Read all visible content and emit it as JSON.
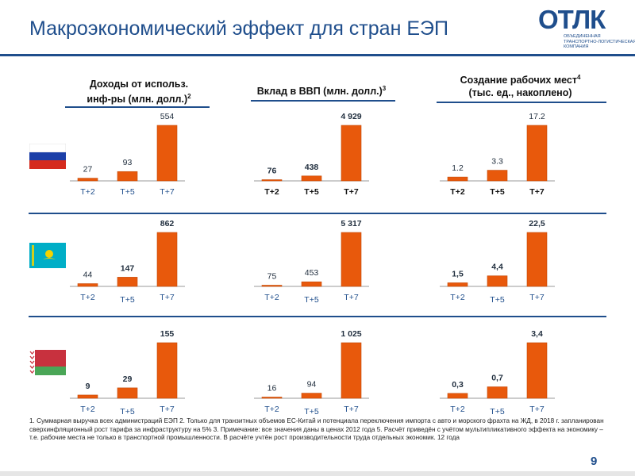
{
  "page": {
    "title": "Макроэкономический эффект для стран ЕЭП",
    "page_number": "9",
    "footnote": "1. Суммарная выручка всех администраций ЕЭП 2. Только для транзитных объемов ЕС-Китай и потенциала переключения импорта с авто и морского фрахта на ЖД, в 2018 г. запланирован сверхинфляционный рост тарифа за инфраструктуру на 5% 3. Примечание: все значения даны в ценах 2012 года 5. Расчёт приведён с учётом мультипликативного эффекта на экономику – т.е. рабочие места не только в транспортной промышленности. В расчёте учтён рост производительности труда отдельных экономик. 12 года"
  },
  "logo": {
    "word": "ОТЛК",
    "sub_lines": [
      "ОБЪЕДИНЕННАЯ",
      "ТРАНСПОРТНО-ЛОГИСТИЧЕСКАЯ",
      "КОМПАНИЯ"
    ],
    "color": "#1f4e8c"
  },
  "columns": [
    {
      "line1": "Доходы от использ.",
      "line2": "инф-ры (млн. долл.)",
      "sup": "2"
    },
    {
      "line1": "Вклад в ВВП (млн. долл.)",
      "line2": "",
      "sup": "3"
    },
    {
      "line1": "Создание рабочих мест",
      "line1_sup": "4",
      "line2": "(тыс. ед., накоплено)",
      "sup": ""
    }
  ],
  "flags": [
    {
      "country_icon": "russia-flag-icon"
    },
    {
      "country_icon": "kazakhstan-flag-icon"
    },
    {
      "country_icon": "belarus-flag-icon"
    }
  ],
  "colors": {
    "bar": "#e8590c",
    "bar_stroke": "#c44a08",
    "accent": "#1f4e8c",
    "baseline": "#9a9a9a"
  },
  "chart_data": [
    {
      "type": "bar",
      "row": "Россия",
      "metric": "Доходы от использ. инф-ры (млн. долл.)",
      "categories": [
        "T+2",
        "T+5",
        "T+7"
      ],
      "values": [
        27,
        93,
        554
      ],
      "labels": [
        "27",
        "93",
        "554"
      ]
    },
    {
      "type": "bar",
      "row": "Россия",
      "metric": "Вклад в ВВП (млн. долл.)",
      "categories": [
        "T+2",
        "T+5",
        "T+7"
      ],
      "values": [
        76,
        438,
        4929
      ],
      "labels": [
        "76",
        "438",
        "4 929"
      ]
    },
    {
      "type": "bar",
      "row": "Россия",
      "metric": "Создание рабочих мест (тыс. ед., накоплено)",
      "categories": [
        "T+2",
        "T+5",
        "T+7"
      ],
      "values": [
        1.2,
        3.3,
        17.2
      ],
      "labels": [
        "1.2",
        "3.3",
        "17.2"
      ]
    },
    {
      "type": "bar",
      "row": "Казахстан",
      "metric": "Доходы от использ. инф-ры (млн. долл.)",
      "categories": [
        "T+2",
        "T+5",
        "T+7"
      ],
      "values": [
        44,
        147,
        862
      ],
      "labels": [
        "44",
        "147",
        "862"
      ]
    },
    {
      "type": "bar",
      "row": "Казахстан",
      "metric": "Вклад в ВВП (млн. долл.)",
      "categories": [
        "T+2",
        "T+5",
        "T+7"
      ],
      "values": [
        75,
        453,
        5317
      ],
      "labels": [
        "75",
        "453",
        "5 317"
      ]
    },
    {
      "type": "bar",
      "row": "Казахстан",
      "metric": "Создание рабочих мест (тыс. ед., накоплено)",
      "categories": [
        "T+2",
        "T+5",
        "T+7"
      ],
      "values": [
        1.5,
        4.4,
        22.5
      ],
      "labels": [
        "1,5",
        "4,4",
        "22,5"
      ]
    },
    {
      "type": "bar",
      "row": "Беларусь",
      "metric": "Доходы от использ. инф-ры (млн. долл.)",
      "categories": [
        "T+2",
        "T+5",
        "T+7"
      ],
      "values": [
        9,
        29,
        155
      ],
      "labels": [
        "9",
        "29",
        "155"
      ]
    },
    {
      "type": "bar",
      "row": "Беларусь",
      "metric": "Вклад в ВВП (млн. долл.)",
      "categories": [
        "T+2",
        "T+5",
        "T+7"
      ],
      "values": [
        16,
        94,
        1025
      ],
      "labels": [
        "16",
        "94",
        "1 025"
      ]
    },
    {
      "type": "bar",
      "row": "Беларусь",
      "metric": "Создание рабочих мест (тыс. ед., накоплено)",
      "categories": [
        "T+2",
        "T+5",
        "T+7"
      ],
      "values": [
        0.3,
        0.7,
        3.4
      ],
      "labels": [
        "0,3",
        "0,7",
        "3,4"
      ]
    }
  ]
}
